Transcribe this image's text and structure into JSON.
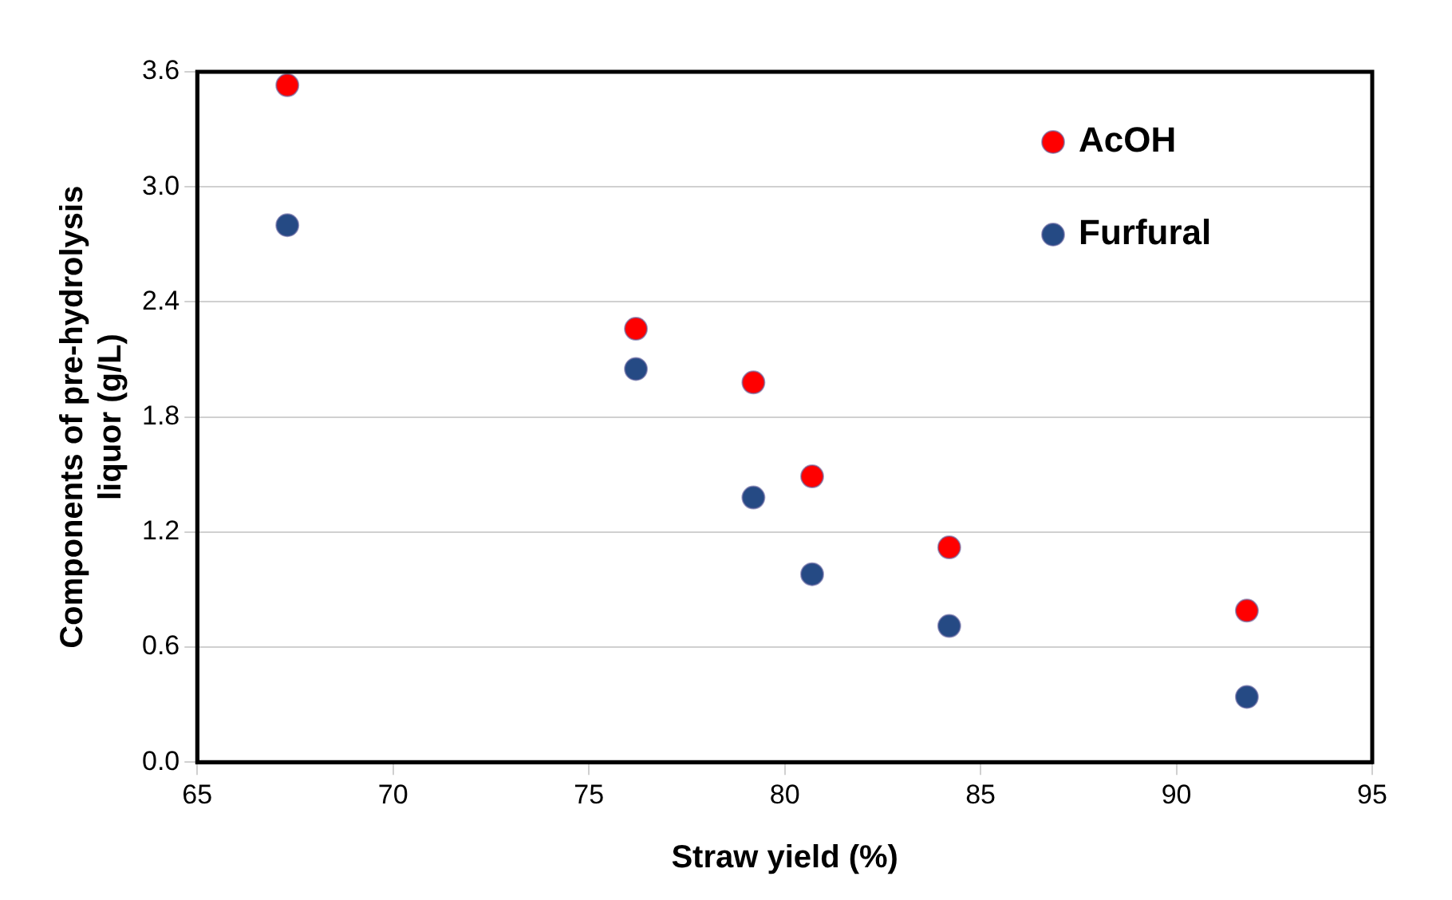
{
  "chart_data": {
    "type": "scatter",
    "xlabel": "Straw yield (%)",
    "ylabel": "Components of pre-hydrolysis liquor (g/L)",
    "x": [
      67.3,
      76.2,
      79.2,
      80.7,
      84.2,
      91.8
    ],
    "series": [
      {
        "name": "AcOH",
        "color": "#ff0000",
        "values": [
          3.53,
          2.26,
          1.98,
          1.49,
          1.12,
          0.79
        ]
      },
      {
        "name": "Furfural",
        "color": "#254a84",
        "values": [
          2.8,
          2.05,
          1.38,
          0.98,
          0.71,
          0.34
        ]
      }
    ],
    "xlim": [
      65,
      95
    ],
    "xticks": [
      65,
      70,
      75,
      80,
      85,
      90,
      95
    ],
    "ylim": [
      0,
      3.6
    ],
    "yticks": [
      {
        "value": 0,
        "label": "0.0"
      },
      {
        "value": 0.6,
        "label": "0.6"
      },
      {
        "value": 1.2,
        "label": "1.2"
      },
      {
        "value": 1.8,
        "label": "1.8"
      },
      {
        "value": 2.4,
        "label": "2.4"
      },
      {
        "value": 3.0,
        "label": "3.0"
      },
      {
        "value": 3.6,
        "label": "3.6"
      }
    ],
    "grid": "y",
    "legend": "top right",
    "marker": "circle"
  }
}
